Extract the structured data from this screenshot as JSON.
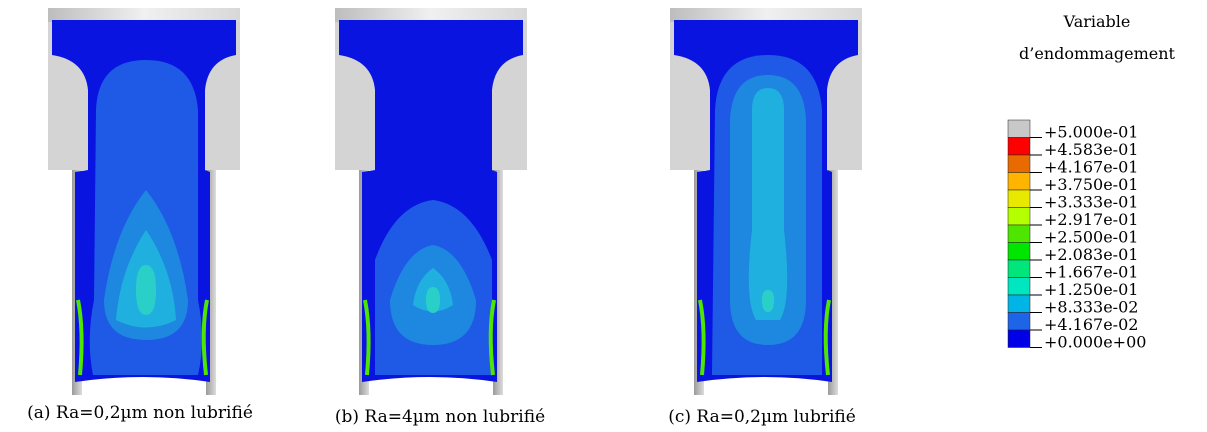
{
  "panels": [
    {
      "caption": "(a) Ra=0,2µm non lubrifié"
    },
    {
      "caption": "(b) Ra=4µm non lubrifié"
    },
    {
      "caption": "(c) Ra=0,2µm lubrifié"
    }
  ],
  "legend": {
    "title": [
      "Variable",
      "d’endommagement"
    ],
    "labels": [
      "+5.000e-01",
      "+4.583e-01",
      "+4.167e-01",
      "+3.750e-01",
      "+3.333e-01",
      "+2.917e-01",
      "+2.500e-01",
      "+2.083e-01",
      "+1.667e-01",
      "+1.250e-01",
      "+8.333e-02",
      "+4.167e-02",
      "+0.000e+00"
    ],
    "colors": [
      "#c8c8c8",
      "#ff0000",
      "#e86a00",
      "#ffb400",
      "#e8e800",
      "#b4ff00",
      "#4ee600",
      "#00e600",
      "#00e67a",
      "#00e6c0",
      "#00b4e6",
      "#1e64e6",
      "#0000e6"
    ]
  }
}
